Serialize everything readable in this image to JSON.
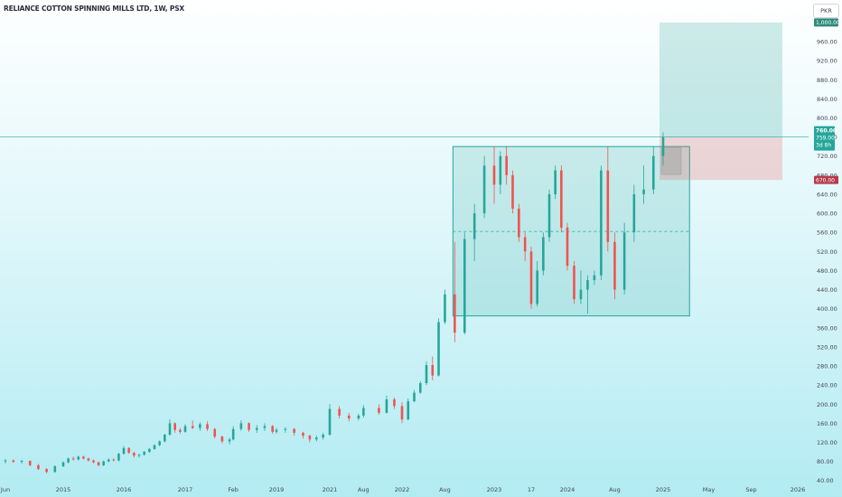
{
  "header": {
    "title": "RELIANCE COTTON SPINNING MILLS LTD, 1W, PSX",
    "currency": "PKR"
  },
  "colors": {
    "up": "#26a69a",
    "down": "#ef5350",
    "price_line": "#26a69a",
    "stop_tag": "#b53b4a",
    "target_tag": "#2d8a7c"
  },
  "chart_data": {
    "type": "candlestick",
    "title": "RELIANCE COTTON SPINNING MILLS LTD, 1W, PSX",
    "currency": "PKR",
    "y_axis": {
      "ylim": [
        30,
        1015
      ],
      "ticks": [
        40,
        80,
        120,
        160,
        200,
        240,
        280,
        320,
        360,
        400,
        440,
        480,
        520,
        560,
        600,
        640,
        680,
        720,
        760,
        800,
        840,
        880,
        920,
        960
      ],
      "tick_labels": [
        "40.00",
        "80.00",
        "120.00",
        "160.00",
        "200.00",
        "240.00",
        "280.00",
        "320.00",
        "360.00",
        "400.00",
        "440.00",
        "480.00",
        "520.00",
        "560.00",
        "600.00",
        "640.00",
        "680.00",
        "720.00",
        "760.00",
        "800.00",
        "840.00",
        "880.00",
        "920.00",
        "960.00"
      ]
    },
    "x_axis": {
      "tick_labels": [
        "Jun",
        "2015",
        "2016",
        "2017",
        "Feb",
        "2019",
        "2021",
        "Aug",
        "2022",
        "Aug",
        "2023",
        "17",
        "2024",
        "Aug",
        "2025",
        "May",
        "Sep",
        "2026"
      ],
      "tick_dates": [
        "2014-06",
        "2015-01",
        "2016-01",
        "2017-01",
        "2018-02",
        "2019-01",
        "2021-01",
        "2021-08",
        "2022-01",
        "2022-08",
        "2023-01",
        "2023-07",
        "2024-01",
        "2024-08",
        "2025-01",
        "2025-05",
        "2025-09",
        "2026-01"
      ]
    },
    "labels": {
      "last_price": "760.00",
      "last_close": "759.00",
      "countdown": "3d 8h",
      "target": "1,000.00",
      "stop": "670.00"
    },
    "last_price": 760,
    "consolidation_box": {
      "from": "2022-09",
      "to": "2025-03",
      "low": 385,
      "high": 740,
      "mid": 562
    },
    "position": {
      "entry": 760,
      "target": 1000,
      "stop": 670,
      "from": "2025-01",
      "to": "2025-11"
    },
    "candles": [
      {
        "d": "2014-06",
        "o": 80,
        "h": 85,
        "l": 76,
        "c": 82
      },
      {
        "d": "2014-07",
        "o": 82,
        "h": 84,
        "l": 77,
        "c": 79
      },
      {
        "d": "2014-08",
        "o": 79,
        "h": 83,
        "l": 75,
        "c": 81
      },
      {
        "d": "2014-09",
        "o": 81,
        "h": 82,
        "l": 70,
        "c": 72
      },
      {
        "d": "2014-10",
        "o": 72,
        "h": 75,
        "l": 62,
        "c": 64
      },
      {
        "d": "2014-11",
        "o": 64,
        "h": 66,
        "l": 55,
        "c": 58
      },
      {
        "d": "2014-12",
        "o": 58,
        "h": 72,
        "l": 56,
        "c": 70
      },
      {
        "d": "2015-01",
        "o": 70,
        "h": 80,
        "l": 68,
        "c": 78
      },
      {
        "d": "2015-02",
        "o": 78,
        "h": 88,
        "l": 76,
        "c": 86
      },
      {
        "d": "2015-03",
        "o": 86,
        "h": 90,
        "l": 82,
        "c": 84
      },
      {
        "d": "2015-04",
        "o": 84,
        "h": 92,
        "l": 82,
        "c": 90
      },
      {
        "d": "2015-05",
        "o": 90,
        "h": 92,
        "l": 84,
        "c": 86
      },
      {
        "d": "2015-06",
        "o": 86,
        "h": 88,
        "l": 80,
        "c": 82
      },
      {
        "d": "2015-07",
        "o": 82,
        "h": 84,
        "l": 76,
        "c": 78
      },
      {
        "d": "2015-08",
        "o": 78,
        "h": 80,
        "l": 70,
        "c": 72
      },
      {
        "d": "2015-09",
        "o": 72,
        "h": 82,
        "l": 70,
        "c": 80
      },
      {
        "d": "2015-10",
        "o": 80,
        "h": 86,
        "l": 78,
        "c": 84
      },
      {
        "d": "2015-11",
        "o": 84,
        "h": 86,
        "l": 80,
        "c": 82
      },
      {
        "d": "2015-12",
        "o": 82,
        "h": 98,
        "l": 80,
        "c": 96
      },
      {
        "d": "2016-01",
        "o": 96,
        "h": 112,
        "l": 94,
        "c": 108
      },
      {
        "d": "2016-02",
        "o": 108,
        "h": 110,
        "l": 96,
        "c": 98
      },
      {
        "d": "2016-03",
        "o": 98,
        "h": 100,
        "l": 88,
        "c": 92
      },
      {
        "d": "2016-04",
        "o": 92,
        "h": 96,
        "l": 88,
        "c": 94
      },
      {
        "d": "2016-05",
        "o": 94,
        "h": 102,
        "l": 92,
        "c": 100
      },
      {
        "d": "2016-06",
        "o": 100,
        "h": 108,
        "l": 98,
        "c": 106
      },
      {
        "d": "2016-07",
        "o": 106,
        "h": 116,
        "l": 104,
        "c": 114
      },
      {
        "d": "2016-08",
        "o": 114,
        "h": 124,
        "l": 112,
        "c": 122
      },
      {
        "d": "2016-09",
        "o": 122,
        "h": 138,
        "l": 120,
        "c": 136
      },
      {
        "d": "2016-10",
        "o": 136,
        "h": 168,
        "l": 134,
        "c": 160
      },
      {
        "d": "2016-11",
        "o": 160,
        "h": 162,
        "l": 140,
        "c": 146
      },
      {
        "d": "2016-12",
        "o": 146,
        "h": 150,
        "l": 138,
        "c": 142
      },
      {
        "d": "2017-01",
        "o": 142,
        "h": 158,
        "l": 140,
        "c": 154
      },
      {
        "d": "2017-03",
        "o": 154,
        "h": 166,
        "l": 148,
        "c": 150
      },
      {
        "d": "2017-05",
        "o": 150,
        "h": 162,
        "l": 144,
        "c": 158
      },
      {
        "d": "2017-07",
        "o": 158,
        "h": 164,
        "l": 144,
        "c": 148
      },
      {
        "d": "2017-09",
        "o": 148,
        "h": 150,
        "l": 128,
        "c": 132
      },
      {
        "d": "2017-11",
        "o": 132,
        "h": 134,
        "l": 118,
        "c": 122
      },
      {
        "d": "2018-01",
        "o": 122,
        "h": 130,
        "l": 116,
        "c": 126
      },
      {
        "d": "2018-02",
        "o": 126,
        "h": 154,
        "l": 124,
        "c": 148
      },
      {
        "d": "2018-04",
        "o": 148,
        "h": 166,
        "l": 144,
        "c": 160
      },
      {
        "d": "2018-06",
        "o": 160,
        "h": 162,
        "l": 142,
        "c": 146
      },
      {
        "d": "2018-08",
        "o": 146,
        "h": 156,
        "l": 140,
        "c": 150
      },
      {
        "d": "2018-10",
        "o": 150,
        "h": 160,
        "l": 144,
        "c": 154
      },
      {
        "d": "2018-12",
        "o": 154,
        "h": 156,
        "l": 138,
        "c": 142
      },
      {
        "d": "2019-01",
        "o": 142,
        "h": 150,
        "l": 138,
        "c": 146
      },
      {
        "d": "2019-05",
        "o": 146,
        "h": 152,
        "l": 140,
        "c": 148
      },
      {
        "d": "2019-09",
        "o": 148,
        "h": 150,
        "l": 134,
        "c": 140
      },
      {
        "d": "2020-01",
        "o": 140,
        "h": 142,
        "l": 128,
        "c": 134
      },
      {
        "d": "2020-04",
        "o": 134,
        "h": 136,
        "l": 120,
        "c": 126
      },
      {
        "d": "2020-07",
        "o": 126,
        "h": 134,
        "l": 122,
        "c": 130
      },
      {
        "d": "2020-10",
        "o": 130,
        "h": 140,
        "l": 126,
        "c": 136
      },
      {
        "d": "2021-01",
        "o": 136,
        "h": 200,
        "l": 134,
        "c": 190
      },
      {
        "d": "2021-03",
        "o": 190,
        "h": 196,
        "l": 170,
        "c": 176
      },
      {
        "d": "2021-05",
        "o": 176,
        "h": 182,
        "l": 164,
        "c": 170
      },
      {
        "d": "2021-07",
        "o": 170,
        "h": 180,
        "l": 166,
        "c": 176
      },
      {
        "d": "2021-08",
        "o": 176,
        "h": 198,
        "l": 172,
        "c": 192
      },
      {
        "d": "2021-10",
        "o": 192,
        "h": 200,
        "l": 178,
        "c": 182
      },
      {
        "d": "2021-11",
        "o": 182,
        "h": 218,
        "l": 180,
        "c": 210
      },
      {
        "d": "2021-12",
        "o": 210,
        "h": 214,
        "l": 190,
        "c": 196
      },
      {
        "d": "2022-01",
        "o": 196,
        "h": 204,
        "l": 160,
        "c": 168
      },
      {
        "d": "2022-02",
        "o": 168,
        "h": 212,
        "l": 166,
        "c": 206
      },
      {
        "d": "2022-03",
        "o": 206,
        "h": 230,
        "l": 204,
        "c": 224
      },
      {
        "d": "2022-04",
        "o": 224,
        "h": 248,
        "l": 222,
        "c": 244
      },
      {
        "d": "2022-05",
        "o": 244,
        "h": 290,
        "l": 240,
        "c": 282
      },
      {
        "d": "2022-06",
        "o": 282,
        "h": 300,
        "l": 250,
        "c": 260
      },
      {
        "d": "2022-07",
        "o": 260,
        "h": 380,
        "l": 258,
        "c": 372
      },
      {
        "d": "2022-08",
        "o": 372,
        "h": 440,
        "l": 368,
        "c": 430
      },
      {
        "d": "2022-09",
        "o": 430,
        "h": 540,
        "l": 330,
        "c": 350
      },
      {
        "d": "2022-10",
        "o": 350,
        "h": 560,
        "l": 346,
        "c": 546
      },
      {
        "d": "2022-11",
        "o": 546,
        "h": 620,
        "l": 500,
        "c": 600
      },
      {
        "d": "2022-12",
        "o": 600,
        "h": 720,
        "l": 590,
        "c": 700
      },
      {
        "d": "2023-01",
        "o": 700,
        "h": 740,
        "l": 620,
        "c": 660
      },
      {
        "d": "2023-02",
        "o": 660,
        "h": 730,
        "l": 640,
        "c": 720
      },
      {
        "d": "2023-03",
        "o": 720,
        "h": 740,
        "l": 660,
        "c": 680
      },
      {
        "d": "2023-04",
        "o": 680,
        "h": 690,
        "l": 600,
        "c": 610
      },
      {
        "d": "2023-05",
        "o": 610,
        "h": 620,
        "l": 540,
        "c": 550
      },
      {
        "d": "2023-06",
        "o": 550,
        "h": 560,
        "l": 500,
        "c": 520
      },
      {
        "d": "2023-07",
        "o": 520,
        "h": 530,
        "l": 400,
        "c": 410
      },
      {
        "d": "2023-08",
        "o": 410,
        "h": 500,
        "l": 405,
        "c": 480
      },
      {
        "d": "2023-09",
        "o": 480,
        "h": 560,
        "l": 470,
        "c": 550
      },
      {
        "d": "2023-10",
        "o": 550,
        "h": 650,
        "l": 540,
        "c": 640
      },
      {
        "d": "2023-11",
        "o": 640,
        "h": 700,
        "l": 630,
        "c": 690
      },
      {
        "d": "2023-12",
        "o": 690,
        "h": 700,
        "l": 560,
        "c": 570
      },
      {
        "d": "2024-01",
        "o": 570,
        "h": 580,
        "l": 480,
        "c": 490
      },
      {
        "d": "2024-02",
        "o": 490,
        "h": 500,
        "l": 410,
        "c": 420
      },
      {
        "d": "2024-03",
        "o": 420,
        "h": 480,
        "l": 410,
        "c": 440
      },
      {
        "d": "2024-04",
        "o": 440,
        "h": 470,
        "l": 390,
        "c": 460
      },
      {
        "d": "2024-05",
        "o": 460,
        "h": 480,
        "l": 450,
        "c": 470
      },
      {
        "d": "2024-06",
        "o": 470,
        "h": 700,
        "l": 460,
        "c": 690
      },
      {
        "d": "2024-07",
        "o": 690,
        "h": 740,
        "l": 520,
        "c": 540
      },
      {
        "d": "2024-08",
        "o": 540,
        "h": 560,
        "l": 420,
        "c": 440
      },
      {
        "d": "2024-09",
        "o": 440,
        "h": 580,
        "l": 430,
        "c": 560
      },
      {
        "d": "2024-10",
        "o": 560,
        "h": 660,
        "l": 540,
        "c": 640
      },
      {
        "d": "2024-11",
        "o": 640,
        "h": 700,
        "l": 620,
        "c": 650
      },
      {
        "d": "2024-12",
        "o": 650,
        "h": 740,
        "l": 640,
        "c": 720
      },
      {
        "d": "2025-01",
        "o": 720,
        "h": 770,
        "l": 700,
        "c": 760
      }
    ]
  }
}
